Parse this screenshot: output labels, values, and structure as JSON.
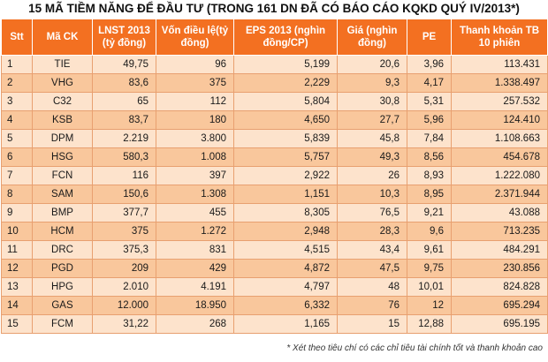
{
  "title": "15 MÃ TIỀM NĂNG ĐỂ ĐẦU TƯ (TRONG 161 DN ĐÃ CÓ BÁO CÁO KQKD QUÝ IV/2013*)",
  "headers": [
    "Stt",
    "Mã CK",
    "LNST 2013 (tỷ đồng)",
    "Vốn điều lệ(tỷ đồng)",
    "EPS 2013 (nghìn đồng/CP)",
    "Giá (nghìn đồng)",
    "PE",
    "Thanh khoản TB 10 phiên"
  ],
  "rows": [
    [
      "1",
      "TIE",
      "49,75",
      "96",
      "5,199",
      "20,6",
      "3,96",
      "113.431"
    ],
    [
      "2",
      "VHG",
      "83,6",
      "375",
      "2,229",
      "9,3",
      "4,17",
      "1.338.497"
    ],
    [
      "3",
      "C32",
      "65",
      "112",
      "5,804",
      "30,8",
      "5,31",
      "257.532"
    ],
    [
      "4",
      "KSB",
      "83,7",
      "180",
      "4,650",
      "27,7",
      "5,96",
      "124.410"
    ],
    [
      "5",
      "DPM",
      "2.219",
      "3.800",
      "5,839",
      "45,8",
      "7,84",
      "1.108.663"
    ],
    [
      "6",
      "HSG",
      "580,3",
      "1.008",
      "5,757",
      "49,3",
      "8,56",
      "454.678"
    ],
    [
      "7",
      "FCN",
      "116",
      "397",
      "2,922",
      "26",
      "8,93",
      "1.222.080"
    ],
    [
      "8",
      "SAM",
      "150,6",
      "1.308",
      "1,151",
      "10,3",
      "8,95",
      "2.371.944"
    ],
    [
      "9",
      "BMP",
      "377,7",
      "455",
      "8,305",
      "76,5",
      "9,21",
      "43.088"
    ],
    [
      "10",
      "HCM",
      "375",
      "1.272",
      "2,948",
      "28,3",
      "9,6",
      "713.235"
    ],
    [
      "11",
      "DRC",
      "375,3",
      "831",
      "4,515",
      "43,4",
      "9,61",
      "484.291"
    ],
    [
      "12",
      "PGD",
      "209",
      "429",
      "4,872",
      "47,5",
      "9,75",
      "230.856"
    ],
    [
      "13",
      "HPG",
      "2.010",
      "4.191",
      "4,797",
      "48",
      "10,01",
      "824.828"
    ],
    [
      "14",
      "GAS",
      "12.000",
      "18.950",
      "6,332",
      "76",
      "12",
      "695.294"
    ],
    [
      "15",
      "FCM",
      "31,22",
      "268",
      "1,165",
      "15",
      "12,88",
      "695.195"
    ]
  ],
  "footnote": "* Xét theo tiêu chí có các chỉ tiêu tài chính tốt và thanh khoản cao",
  "colors": {
    "header_bg": "#f37021",
    "row_light": "#fde3cc",
    "row_dark": "#f9c79c"
  }
}
